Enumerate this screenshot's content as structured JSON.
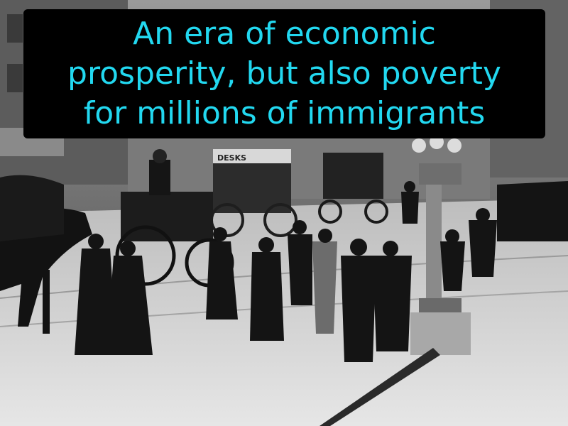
{
  "caption": {
    "lines": [
      "An era of economic",
      "prosperity, but also poverty",
      "for millions of immigrants"
    ],
    "text_color": "#22d8f0",
    "background_color": "#000000"
  },
  "photo": {
    "style": "black-and-white",
    "signs": {
      "wagon_sign": "DESKS"
    }
  }
}
